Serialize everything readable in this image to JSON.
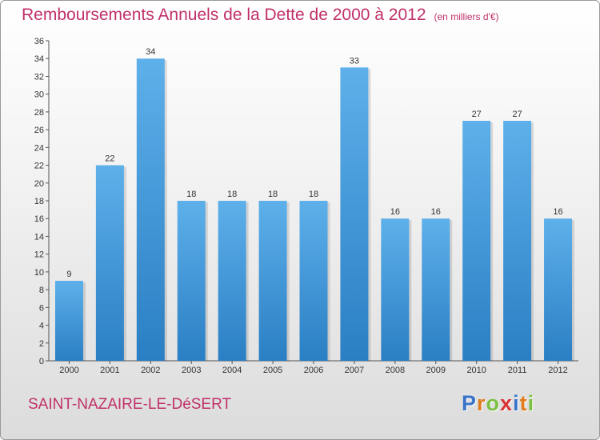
{
  "header": {
    "title": "Remboursements Annuels de la Dette de 2000 à 2012",
    "unit": "(en milliers d'€)"
  },
  "footer": {
    "commune": "SAINT-NAZAIRE-LE-DéSERT",
    "logo": [
      "P",
      "r",
      "o",
      "x",
      "i",
      "t",
      "i"
    ]
  },
  "colors": {
    "bar_light": "#5eb0ea",
    "bar_dark": "#2a7fc4",
    "title": "#c0306a"
  },
  "chart_data": {
    "type": "bar",
    "categories": [
      "2000",
      "2001",
      "2002",
      "2003",
      "2004",
      "2005",
      "2006",
      "2007",
      "2008",
      "2009",
      "2010",
      "2011",
      "2012"
    ],
    "values": [
      9,
      22,
      34,
      18,
      18,
      18,
      18,
      33,
      16,
      16,
      27,
      27,
      16
    ],
    "title": "Remboursements Annuels de la Dette de 2000 à 2012",
    "xlabel": "",
    "ylabel": "",
    "ylim": [
      0,
      36
    ],
    "yticks": [
      0,
      2,
      4,
      6,
      8,
      10,
      12,
      14,
      16,
      18,
      20,
      22,
      24,
      26,
      28,
      30,
      32,
      34,
      36
    ],
    "grid": false,
    "legend": "none"
  }
}
